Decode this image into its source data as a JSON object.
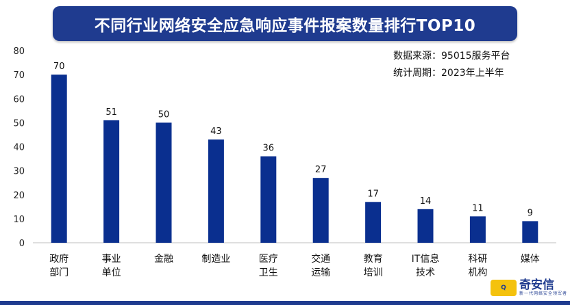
{
  "title": "不同行业网络安全应急响应事件报案数量排行TOP10",
  "source_note": {
    "line1": "数据来源：95015服务平台",
    "line2": "统计周期：2023年上半年"
  },
  "logo": {
    "badge_text": "Q",
    "brand": "奇安信",
    "tagline": "新一代网络安全领军者"
  },
  "colors": {
    "bar": "#0a2f8f",
    "banner": "#1f3b8f",
    "axis": "#bfbfbf"
  },
  "chart_data": {
    "type": "bar",
    "title": "不同行业网络安全应急响应事件报案数量排行TOP10",
    "xlabel": "",
    "ylabel": "",
    "ylim": [
      0,
      80
    ],
    "yticks": [
      0,
      10,
      20,
      30,
      40,
      50,
      60,
      70,
      80
    ],
    "grid": false,
    "categories": [
      [
        "政府",
        "部门"
      ],
      [
        "事业",
        "单位"
      ],
      [
        "金融"
      ],
      [
        "制造业"
      ],
      [
        "医疗",
        "卫生"
      ],
      [
        "交通",
        "运输"
      ],
      [
        "教育",
        "培训"
      ],
      [
        "IT信息",
        "技术"
      ],
      [
        "科研",
        "机构"
      ],
      [
        "媒体"
      ]
    ],
    "values": [
      70,
      51,
      50,
      43,
      36,
      27,
      17,
      14,
      11,
      9
    ]
  }
}
